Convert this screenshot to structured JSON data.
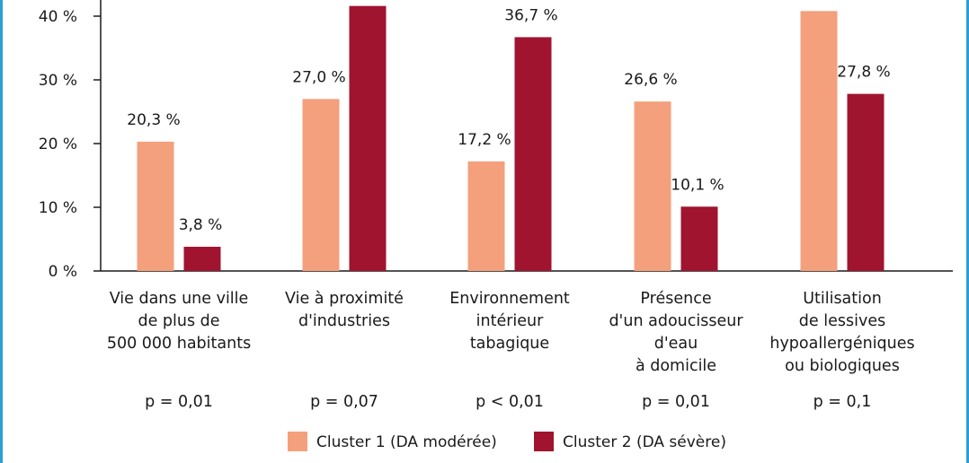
{
  "chart_data": {
    "type": "bar",
    "categories": [
      [
        "Vie dans une ville",
        "de plus de",
        "500 000 habitants"
      ],
      [
        "Vie à proximité",
        "d'industries"
      ],
      [
        "Environnement",
        "intérieur",
        "tabagique"
      ],
      [
        "Présence",
        "d'un adoucisseur",
        "d'eau",
        "à domicile"
      ],
      [
        "Utilisation",
        "de lessives",
        "hypoallergéniques",
        "ou biologiques"
      ]
    ],
    "p_values": [
      "p = 0,01",
      "p = 0,07",
      "p < 0,01",
      "p = 0,01",
      "p = 0,1"
    ],
    "series": [
      {
        "name": "Cluster 1 (DA modérée)",
        "color": "#f4a07c",
        "values": [
          20.3,
          27.0,
          17.2,
          26.6,
          40.8
        ],
        "labels": [
          "20,3 %",
          "27,0 %",
          "17,2 %",
          "26,6 %",
          ""
        ]
      },
      {
        "name": "Cluster 2 (DA sévère)",
        "color": "#a0142f",
        "values": [
          3.8,
          41.6,
          36.7,
          10.1,
          27.8
        ],
        "labels": [
          "3,8 %",
          "",
          "36,7 %",
          "10,1 %",
          "27,8 %"
        ]
      }
    ],
    "y_ticks": [
      0,
      10,
      20,
      30,
      40
    ],
    "y_tick_labels": [
      "0 %",
      "10 %",
      "20 %",
      "30 %",
      "40 %"
    ],
    "ylim": [
      0,
      42
    ],
    "legend_position": "bottom-center",
    "grid": false
  }
}
